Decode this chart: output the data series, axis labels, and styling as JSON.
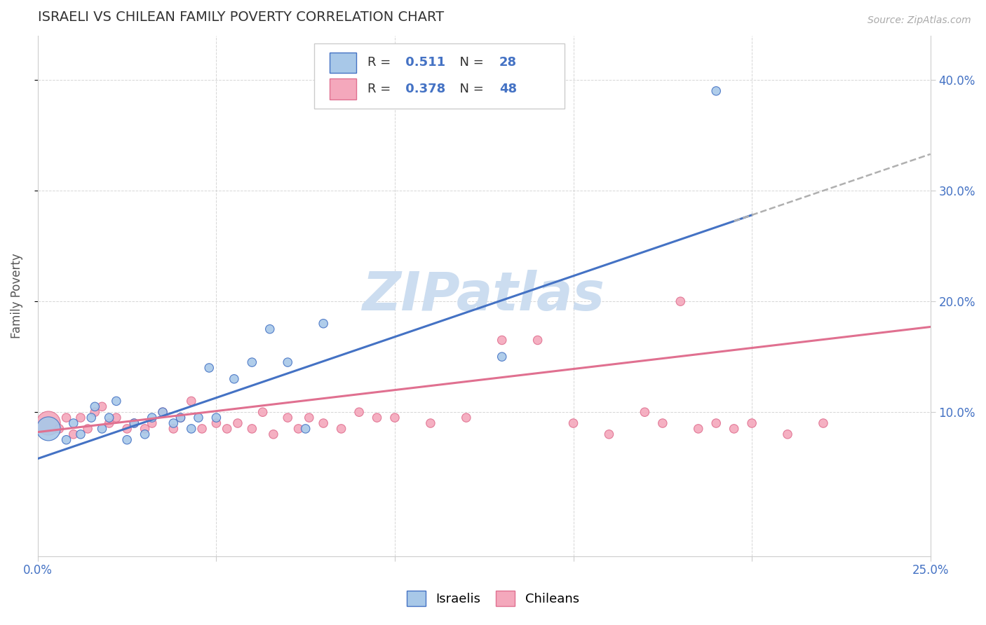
{
  "title": "ISRAELI VS CHILEAN FAMILY POVERTY CORRELATION CHART",
  "source": "Source: ZipAtlas.com",
  "ylabel": "Family Poverty",
  "xlim": [
    0.0,
    0.25
  ],
  "ylim": [
    -0.03,
    0.44
  ],
  "xticks": [
    0.0,
    0.05,
    0.1,
    0.15,
    0.2,
    0.25
  ],
  "yticks": [
    0.1,
    0.2,
    0.3,
    0.4
  ],
  "ytick_labels": [
    "10.0%",
    "20.0%",
    "30.0%",
    "40.0%"
  ],
  "xtick_labels_show": [
    "0.0%",
    "25.0%"
  ],
  "israeli_color": "#a8c8e8",
  "chilean_color": "#f4a8bc",
  "israeli_edge_color": "#4472c4",
  "chilean_edge_color": "#e07090",
  "israeli_line_color": "#4472c4",
  "chilean_line_color": "#e07090",
  "dashed_line_color": "#b0b0b0",
  "R_israeli": 0.511,
  "N_israeli": 28,
  "R_chilean": 0.378,
  "N_chilean": 48,
  "background_color": "#ffffff",
  "grid_color": "#cccccc",
  "title_color": "#333333",
  "axis_label_color": "#555555",
  "tick_color": "#4472c4",
  "watermark": "ZIPatlas",
  "watermark_color": "#ccddf0",
  "isr_intercept": 0.058,
  "isr_slope": 1.1,
  "chl_intercept": 0.082,
  "chl_slope": 0.38,
  "israelis_x": [
    0.003,
    0.008,
    0.01,
    0.012,
    0.015,
    0.016,
    0.018,
    0.02,
    0.022,
    0.025,
    0.027,
    0.03,
    0.032,
    0.035,
    0.038,
    0.04,
    0.043,
    0.045,
    0.048,
    0.05,
    0.055,
    0.06,
    0.065,
    0.07,
    0.075,
    0.08,
    0.13,
    0.19
  ],
  "israelis_y": [
    0.085,
    0.075,
    0.09,
    0.08,
    0.095,
    0.105,
    0.085,
    0.095,
    0.11,
    0.075,
    0.09,
    0.08,
    0.095,
    0.1,
    0.09,
    0.095,
    0.085,
    0.095,
    0.14,
    0.095,
    0.13,
    0.145,
    0.175,
    0.145,
    0.085,
    0.18,
    0.15,
    0.39
  ],
  "israelis_size": [
    600,
    80,
    80,
    80,
    80,
    80,
    80,
    80,
    80,
    80,
    80,
    80,
    80,
    80,
    80,
    80,
    80,
    80,
    80,
    80,
    80,
    80,
    80,
    80,
    80,
    80,
    80,
    80
  ],
  "chileans_x": [
    0.003,
    0.006,
    0.008,
    0.01,
    0.012,
    0.014,
    0.016,
    0.018,
    0.02,
    0.022,
    0.025,
    0.027,
    0.03,
    0.032,
    0.035,
    0.038,
    0.04,
    0.043,
    0.046,
    0.05,
    0.053,
    0.056,
    0.06,
    0.063,
    0.066,
    0.07,
    0.073,
    0.076,
    0.08,
    0.085,
    0.09,
    0.095,
    0.1,
    0.11,
    0.12,
    0.13,
    0.14,
    0.15,
    0.16,
    0.17,
    0.175,
    0.18,
    0.185,
    0.19,
    0.195,
    0.2,
    0.21,
    0.22
  ],
  "chileans_y": [
    0.09,
    0.085,
    0.095,
    0.08,
    0.095,
    0.085,
    0.1,
    0.105,
    0.09,
    0.095,
    0.085,
    0.09,
    0.085,
    0.09,
    0.1,
    0.085,
    0.095,
    0.11,
    0.085,
    0.09,
    0.085,
    0.09,
    0.085,
    0.1,
    0.08,
    0.095,
    0.085,
    0.095,
    0.09,
    0.085,
    0.1,
    0.095,
    0.095,
    0.09,
    0.095,
    0.165,
    0.165,
    0.09,
    0.08,
    0.1,
    0.09,
    0.2,
    0.085,
    0.09,
    0.085,
    0.09,
    0.08,
    0.09
  ],
  "chileans_size": [
    600,
    80,
    80,
    80,
    80,
    80,
    80,
    80,
    80,
    80,
    80,
    80,
    80,
    80,
    80,
    80,
    80,
    80,
    80,
    80,
    80,
    80,
    80,
    80,
    80,
    80,
    80,
    80,
    80,
    80,
    80,
    80,
    80,
    80,
    80,
    80,
    80,
    80,
    80,
    80,
    80,
    80,
    80,
    80,
    80,
    80,
    80,
    80
  ]
}
